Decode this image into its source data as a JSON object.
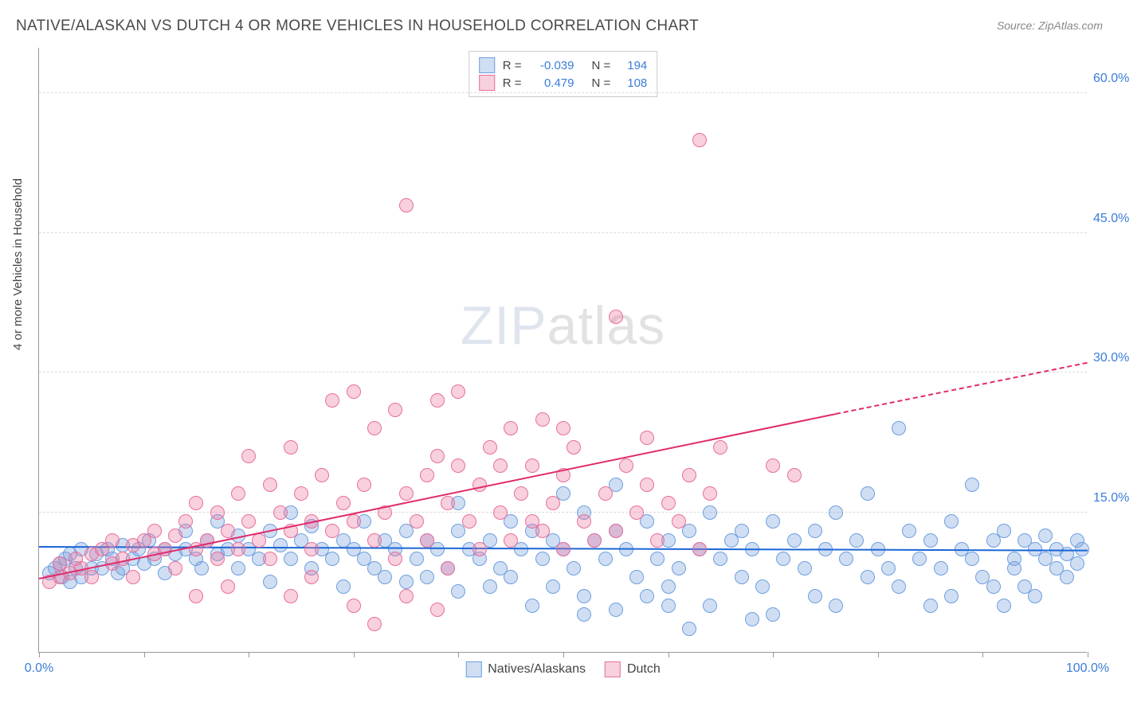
{
  "title": "NATIVE/ALASKAN VS DUTCH 4 OR MORE VEHICLES IN HOUSEHOLD CORRELATION CHART",
  "source": "Source: ZipAtlas.com",
  "ylabel": "4 or more Vehicles in Household",
  "watermark_bold": "ZIP",
  "watermark_light": "atlas",
  "chart": {
    "type": "scatter",
    "xlim": [
      0,
      100
    ],
    "ylim": [
      0,
      65
    ],
    "yticks": [
      15,
      30,
      45,
      60
    ],
    "ytick_labels": [
      "15.0%",
      "30.0%",
      "45.0%",
      "60.0%"
    ],
    "xticks": [
      0,
      10,
      20,
      30,
      40,
      50,
      60,
      70,
      80,
      90,
      100
    ],
    "xtick_labels": {
      "0": "0.0%",
      "100": "100.0%"
    },
    "background_color": "#ffffff",
    "grid_color": "#dcdcdc",
    "axis_color": "#999999",
    "marker_radius": 9,
    "marker_stroke_width": 1,
    "series": [
      {
        "name": "Natives/Alaskans",
        "legend_label": "Natives/Alaskans",
        "fill": "rgba(120,160,220,0.35)",
        "stroke": "#6d9fe0",
        "trend_color": "#1b66d6",
        "r": -0.039,
        "n": 194,
        "trend": {
          "x1": 0,
          "y1": 11.2,
          "x2": 100,
          "y2": 10.8
        },
        "points": [
          [
            1,
            8.5
          ],
          [
            1.5,
            9
          ],
          [
            2,
            9.5
          ],
          [
            2.2,
            8
          ],
          [
            2.5,
            10
          ],
          [
            3,
            10.5
          ],
          [
            3,
            7.5
          ],
          [
            3.5,
            9
          ],
          [
            4,
            11
          ],
          [
            4,
            8
          ],
          [
            5,
            9
          ],
          [
            5.5,
            10.5
          ],
          [
            6,
            9
          ],
          [
            6.5,
            11
          ],
          [
            7,
            10
          ],
          [
            7.5,
            8.5
          ],
          [
            8,
            11.5
          ],
          [
            8,
            9
          ],
          [
            9,
            10
          ],
          [
            9.5,
            11
          ],
          [
            10,
            9.5
          ],
          [
            10.5,
            12
          ],
          [
            11,
            10
          ],
          [
            12,
            11
          ],
          [
            12,
            8.5
          ],
          [
            13,
            10.5
          ],
          [
            14,
            11
          ],
          [
            14,
            13
          ],
          [
            15,
            10
          ],
          [
            15.5,
            9
          ],
          [
            16,
            12
          ],
          [
            17,
            10.5
          ],
          [
            17,
            14
          ],
          [
            18,
            11
          ],
          [
            19,
            9
          ],
          [
            19,
            12.5
          ],
          [
            20,
            11
          ],
          [
            21,
            10
          ],
          [
            22,
            13
          ],
          [
            22,
            7.5
          ],
          [
            23,
            11.5
          ],
          [
            24,
            10
          ],
          [
            24,
            15
          ],
          [
            25,
            12
          ],
          [
            26,
            9
          ],
          [
            26,
            13.5
          ],
          [
            27,
            11
          ],
          [
            28,
            10
          ],
          [
            29,
            12
          ],
          [
            29,
            7
          ],
          [
            30,
            11
          ],
          [
            31,
            10
          ],
          [
            31,
            14
          ],
          [
            32,
            9
          ],
          [
            33,
            12
          ],
          [
            33,
            8
          ],
          [
            34,
            11
          ],
          [
            35,
            7.5
          ],
          [
            35,
            13
          ],
          [
            36,
            10
          ],
          [
            37,
            12
          ],
          [
            37,
            8
          ],
          [
            38,
            11
          ],
          [
            39,
            9
          ],
          [
            40,
            13
          ],
          [
            40,
            6.5
          ],
          [
            41,
            11
          ],
          [
            42,
            10
          ],
          [
            43,
            12
          ],
          [
            43,
            7
          ],
          [
            44,
            9
          ],
          [
            45,
            14
          ],
          [
            45,
            8
          ],
          [
            46,
            11
          ],
          [
            47,
            13
          ],
          [
            47,
            5
          ],
          [
            48,
            10
          ],
          [
            49,
            12
          ],
          [
            49,
            7
          ],
          [
            50,
            11
          ],
          [
            51,
            9
          ],
          [
            52,
            15
          ],
          [
            52,
            6
          ],
          [
            53,
            12
          ],
          [
            54,
            10
          ],
          [
            55,
            13
          ],
          [
            55,
            4.5
          ],
          [
            56,
            11
          ],
          [
            57,
            8
          ],
          [
            58,
            14
          ],
          [
            58,
            6
          ],
          [
            59,
            10
          ],
          [
            60,
            12
          ],
          [
            60,
            7
          ],
          [
            61,
            9
          ],
          [
            62,
            13
          ],
          [
            62,
            2.5
          ],
          [
            63,
            11
          ],
          [
            64,
            15
          ],
          [
            64,
            5
          ],
          [
            65,
            10
          ],
          [
            66,
            12
          ],
          [
            67,
            8
          ],
          [
            67,
            13
          ],
          [
            68,
            11
          ],
          [
            69,
            7
          ],
          [
            70,
            14
          ],
          [
            70,
            4
          ],
          [
            71,
            10
          ],
          [
            72,
            12
          ],
          [
            73,
            9
          ],
          [
            74,
            13
          ],
          [
            74,
            6
          ],
          [
            75,
            11
          ],
          [
            76,
            15
          ],
          [
            76,
            5
          ],
          [
            77,
            10
          ],
          [
            78,
            12
          ],
          [
            79,
            8
          ],
          [
            79,
            17
          ],
          [
            80,
            11
          ],
          [
            81,
            9
          ],
          [
            82,
            24
          ],
          [
            82,
            7
          ],
          [
            83,
            13
          ],
          [
            84,
            10
          ],
          [
            85,
            12
          ],
          [
            85,
            5
          ],
          [
            86,
            9
          ],
          [
            87,
            14
          ],
          [
            87,
            6
          ],
          [
            88,
            11
          ],
          [
            89,
            10
          ],
          [
            89,
            18
          ],
          [
            90,
            8
          ],
          [
            91,
            12
          ],
          [
            91,
            7
          ],
          [
            92,
            13
          ],
          [
            92,
            5
          ],
          [
            93,
            10
          ],
          [
            93,
            9
          ],
          [
            94,
            12
          ],
          [
            94,
            7
          ],
          [
            95,
            11
          ],
          [
            95,
            6
          ],
          [
            96,
            10
          ],
          [
            96,
            12.5
          ],
          [
            97,
            9
          ],
          [
            97,
            11
          ],
          [
            98,
            10.5
          ],
          [
            98,
            8
          ],
          [
            99,
            12
          ],
          [
            99,
            9.5
          ],
          [
            99.5,
            11
          ],
          [
            40,
            16
          ],
          [
            50,
            17
          ],
          [
            55,
            18
          ],
          [
            60,
            5
          ],
          [
            52,
            4
          ],
          [
            68,
            3.5
          ]
        ]
      },
      {
        "name": "Dutch",
        "legend_label": "Dutch",
        "fill": "rgba(235,120,160,0.35)",
        "stroke": "#e86f9b",
        "trend_color": "#e12b6b",
        "r": 0.479,
        "n": 108,
        "trend": {
          "x1": 0,
          "y1": 7.8,
          "x2": 76,
          "y2": 25.5
        },
        "trend_dashed": {
          "x1": 76,
          "y1": 25.5,
          "x2": 100,
          "y2": 31
        },
        "points": [
          [
            1,
            7.5
          ],
          [
            2,
            8
          ],
          [
            2,
            9.5
          ],
          [
            3,
            8.5
          ],
          [
            3.5,
            10
          ],
          [
            4,
            9
          ],
          [
            5,
            10.5
          ],
          [
            5,
            8
          ],
          [
            6,
            11
          ],
          [
            7,
            9.5
          ],
          [
            7,
            12
          ],
          [
            8,
            10
          ],
          [
            9,
            11.5
          ],
          [
            9,
            8
          ],
          [
            10,
            12
          ],
          [
            11,
            10.5
          ],
          [
            11,
            13
          ],
          [
            12,
            11
          ],
          [
            13,
            12.5
          ],
          [
            13,
            9
          ],
          [
            14,
            14
          ],
          [
            15,
            11
          ],
          [
            15,
            16
          ],
          [
            16,
            12
          ],
          [
            17,
            15
          ],
          [
            17,
            10
          ],
          [
            18,
            13
          ],
          [
            19,
            17
          ],
          [
            19,
            11
          ],
          [
            20,
            14
          ],
          [
            20,
            21
          ],
          [
            21,
            12
          ],
          [
            22,
            18
          ],
          [
            22,
            10
          ],
          [
            23,
            15
          ],
          [
            24,
            13
          ],
          [
            24,
            22
          ],
          [
            25,
            17
          ],
          [
            26,
            14
          ],
          [
            26,
            11
          ],
          [
            27,
            19
          ],
          [
            28,
            13
          ],
          [
            28,
            27
          ],
          [
            29,
            16
          ],
          [
            30,
            14
          ],
          [
            30,
            28
          ],
          [
            31,
            18
          ],
          [
            32,
            12
          ],
          [
            32,
            24
          ],
          [
            33,
            15
          ],
          [
            34,
            26
          ],
          [
            34,
            10
          ],
          [
            35,
            17
          ],
          [
            35,
            48
          ],
          [
            36,
            14
          ],
          [
            37,
            19
          ],
          [
            37,
            12
          ],
          [
            38,
            27
          ],
          [
            39,
            16
          ],
          [
            39,
            9
          ],
          [
            40,
            20
          ],
          [
            41,
            14
          ],
          [
            42,
            18
          ],
          [
            42,
            11
          ],
          [
            43,
            22
          ],
          [
            44,
            15
          ],
          [
            45,
            24
          ],
          [
            45,
            12
          ],
          [
            46,
            17
          ],
          [
            47,
            20
          ],
          [
            48,
            13
          ],
          [
            48,
            25
          ],
          [
            49,
            16
          ],
          [
            50,
            19
          ],
          [
            50,
            11
          ],
          [
            51,
            22
          ],
          [
            52,
            14
          ],
          [
            53,
            12
          ],
          [
            54,
            17
          ],
          [
            55,
            13
          ],
          [
            55,
            36
          ],
          [
            56,
            20
          ],
          [
            57,
            15
          ],
          [
            58,
            18
          ],
          [
            59,
            12
          ],
          [
            60,
            16
          ],
          [
            61,
            14
          ],
          [
            62,
            19
          ],
          [
            63,
            11
          ],
          [
            64,
            17
          ],
          [
            63,
            55
          ],
          [
            32,
            3
          ],
          [
            38,
            21
          ],
          [
            40,
            28
          ],
          [
            24,
            6
          ],
          [
            26,
            8
          ],
          [
            15,
            6
          ],
          [
            18,
            7
          ],
          [
            44,
            20
          ],
          [
            47,
            14
          ],
          [
            50,
            24
          ],
          [
            58,
            23
          ],
          [
            65,
            22
          ],
          [
            70,
            20
          ],
          [
            72,
            19
          ],
          [
            30,
            5
          ],
          [
            35,
            6
          ],
          [
            38,
            4.5
          ]
        ]
      }
    ]
  },
  "stats_box": {
    "rows": [
      {
        "swatch_fill": "rgba(120,160,220,0.35)",
        "swatch_stroke": "#6d9fe0",
        "r_label": "R =",
        "r_val": "-0.039",
        "n_label": "N =",
        "n_val": "194"
      },
      {
        "swatch_fill": "rgba(235,120,160,0.35)",
        "swatch_stroke": "#e86f9b",
        "r_label": "R =",
        "r_val": "0.479",
        "n_label": "N =",
        "n_val": "108"
      }
    ]
  },
  "legend": [
    {
      "fill": "rgba(120,160,220,0.35)",
      "stroke": "#6d9fe0",
      "label": "Natives/Alaskans"
    },
    {
      "fill": "rgba(235,120,160,0.35)",
      "stroke": "#e86f9b",
      "label": "Dutch"
    }
  ]
}
